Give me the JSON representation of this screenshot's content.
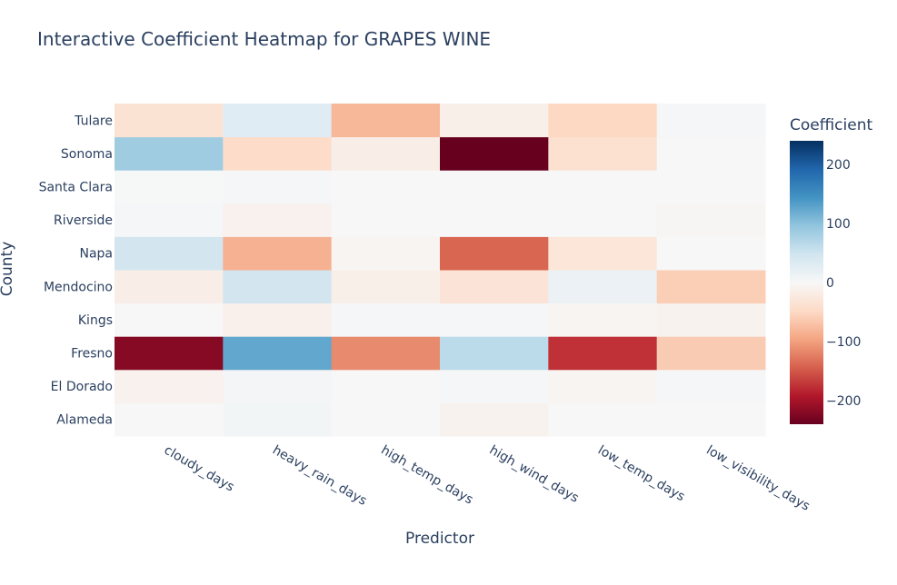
{
  "chart_data": {
    "type": "heatmap",
    "title": "Interactive Coefficient Heatmap for GRAPES WINE",
    "xlabel": "Predictor",
    "ylabel": "County",
    "colorbar_title": "Coefficient",
    "x": [
      "cloudy_days",
      "heavy_rain_days",
      "high_temp_days",
      "high_wind_days",
      "low_temp_days",
      "low_visibility_days"
    ],
    "y": [
      "Alameda",
      "El Dorado",
      "Fresno",
      "Kings",
      "Mendocino",
      "Napa",
      "Riverside",
      "Santa Clara",
      "Sonoma",
      "Tulare"
    ],
    "z": [
      [
        0,
        6,
        0,
        -8,
        0,
        0
      ],
      [
        -10,
        5,
        0,
        2,
        -6,
        3
      ],
      [
        -220,
        125,
        -115,
        65,
        -175,
        -62
      ],
      [
        0,
        -12,
        2,
        2,
        -5,
        -8
      ],
      [
        -16,
        45,
        -14,
        -32,
        15,
        -60
      ],
      [
        45,
        -85,
        -6,
        -140,
        -30,
        0
      ],
      [
        3,
        -10,
        0,
        0,
        0,
        -3
      ],
      [
        1,
        3,
        0,
        0,
        0,
        0
      ],
      [
        85,
        -45,
        -16,
        -240,
        -38,
        0
      ],
      [
        -35,
        30,
        -80,
        -14,
        -50,
        3
      ]
    ],
    "zmin": -240,
    "zmax": 240,
    "colorscale": "RdBu",
    "colorbar_ticks": [
      200,
      100,
      0,
      -100,
      -200
    ],
    "colorbar_tick_labels": [
      "200",
      "100",
      "0",
      "−100",
      "−200"
    ]
  }
}
